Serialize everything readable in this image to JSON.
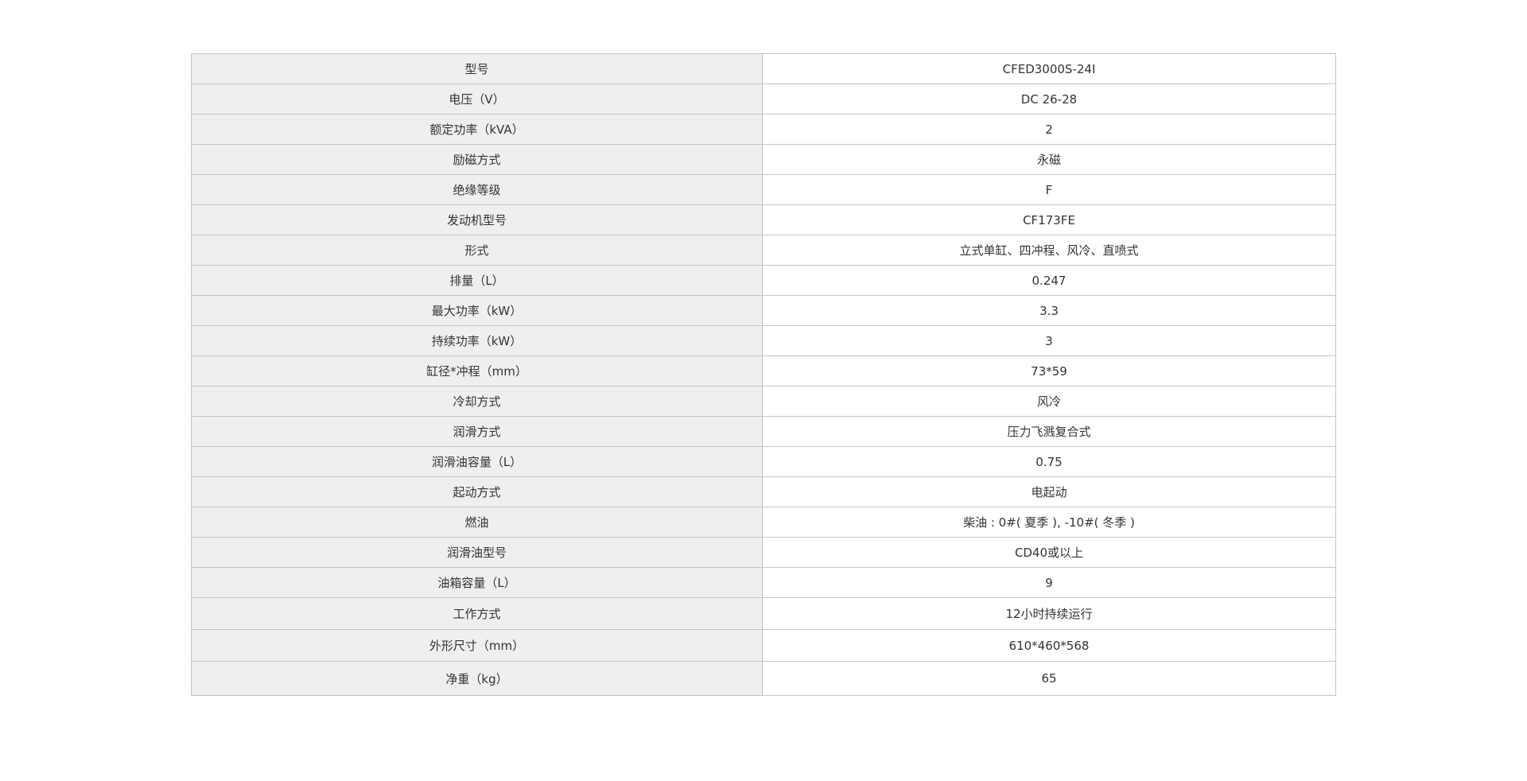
{
  "spec_table": {
    "rows": [
      {
        "label": "型号",
        "value": "CFED3000S-24I"
      },
      {
        "label": "电压（V）",
        "value": "DC 26-28"
      },
      {
        "label": "额定功率（kVA）",
        "value": "2"
      },
      {
        "label": "励磁方式",
        "value": "永磁"
      },
      {
        "label": "绝缘等级",
        "value": "F"
      },
      {
        "label": "发动机型号",
        "value": "CF173FE"
      },
      {
        "label": "形式",
        "value": "立式单缸、四冲程、风冷、直喷式"
      },
      {
        "label": "排量（L）",
        "value": "0.247"
      },
      {
        "label": "最大功率（kW）",
        "value": "3.3"
      },
      {
        "label": "持续功率（kW）",
        "value": "3"
      },
      {
        "label": "缸径*冲程（mm）",
        "value": "73*59"
      },
      {
        "label": "冷却方式",
        "value": "风冷"
      },
      {
        "label": "润滑方式",
        "value": "压力飞溅复合式"
      },
      {
        "label": "润滑油容量（L）",
        "value": "0.75"
      },
      {
        "label": "起动方式",
        "value": "电起动"
      },
      {
        "label": "燃油",
        "value": "柴油 : 0#( 夏季 ), -10#( 冬季 )"
      },
      {
        "label": "润滑油型号",
        "value": "CD40或以上"
      },
      {
        "label": "油箱容量（L）",
        "value": "9"
      },
      {
        "label": "工作方式",
        "value": "12小时持续运行"
      },
      {
        "label": "外形尺寸（mm）",
        "value": "610*460*568"
      },
      {
        "label": "净重（kg）",
        "value": "65"
      }
    ]
  }
}
